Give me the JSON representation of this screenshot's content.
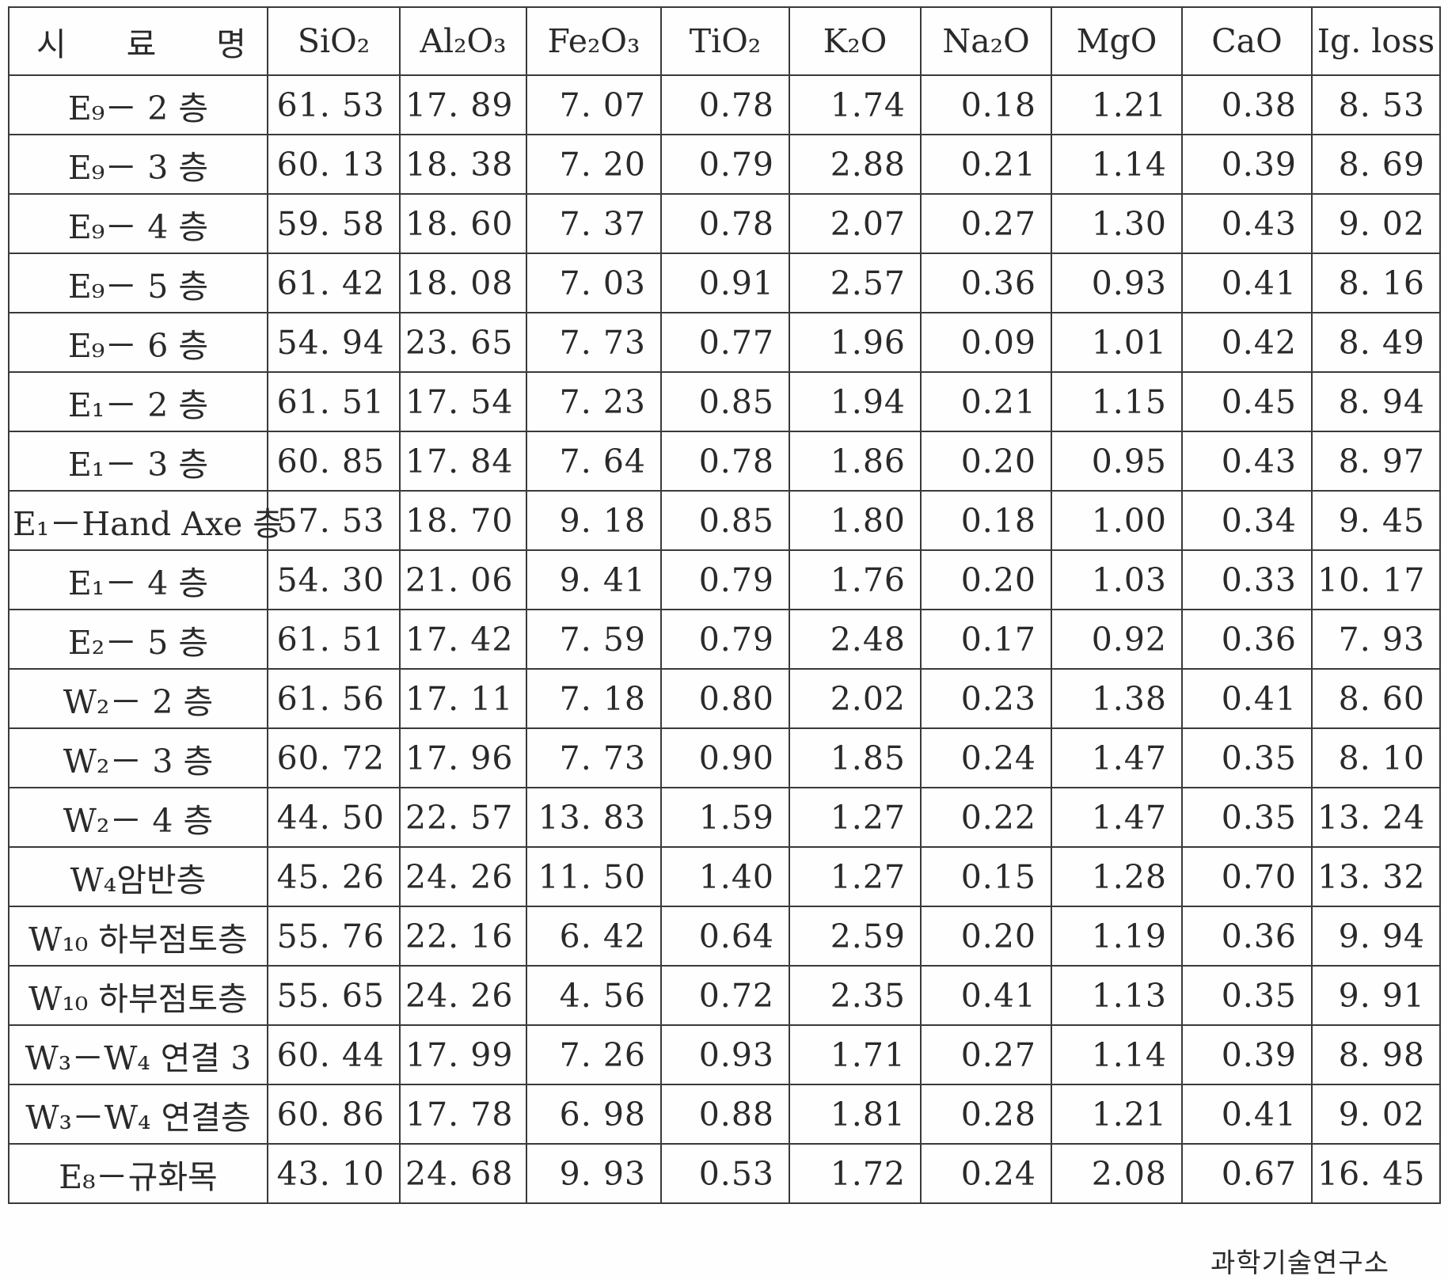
{
  "table": {
    "header": {
      "sample_name_chars": [
        "시",
        "료",
        "명"
      ],
      "columns": [
        "SiO₂",
        "Al₂O₃",
        "Fe₂O₃",
        "TiO₂",
        "K₂O",
        "Na₂O",
        "MgO",
        "CaO",
        "Ig. loss"
      ]
    },
    "rows": [
      {
        "sample": "E₉－ 2 층",
        "values": [
          "61. 53",
          "17. 89",
          "7. 07",
          "0.78",
          "1.74",
          "0.18",
          "1.21",
          "0.38",
          "8. 53"
        ]
      },
      {
        "sample": "E₉－ 3 층",
        "values": [
          "60. 13",
          "18. 38",
          "7. 20",
          "0.79",
          "2.88",
          "0.21",
          "1.14",
          "0.39",
          "8. 69"
        ]
      },
      {
        "sample": "E₉－ 4 층",
        "values": [
          "59. 58",
          "18. 60",
          "7. 37",
          "0.78",
          "2.07",
          "0.27",
          "1.30",
          "0.43",
          "9. 02"
        ]
      },
      {
        "sample": "E₉－ 5 층",
        "values": [
          "61. 42",
          "18. 08",
          "7. 03",
          "0.91",
          "2.57",
          "0.36",
          "0.93",
          "0.41",
          "8. 16"
        ]
      },
      {
        "sample": "E₉－ 6 층",
        "values": [
          "54. 94",
          "23. 65",
          "7. 73",
          "0.77",
          "1.96",
          "0.09",
          "1.01",
          "0.42",
          "8. 49"
        ]
      },
      {
        "sample": "E₁－ 2 층",
        "values": [
          "61. 51",
          "17. 54",
          "7. 23",
          "0.85",
          "1.94",
          "0.21",
          "1.15",
          "0.45",
          "8. 94"
        ]
      },
      {
        "sample": "E₁－ 3 층",
        "values": [
          "60. 85",
          "17. 84",
          "7. 64",
          "0.78",
          "1.86",
          "0.20",
          "0.95",
          "0.43",
          "8. 97"
        ]
      },
      {
        "sample": "E₁－Hand Axe 층",
        "values": [
          "57. 53",
          "18. 70",
          "9. 18",
          "0.85",
          "1.80",
          "0.18",
          "1.00",
          "0.34",
          "9. 45"
        ]
      },
      {
        "sample": "E₁－ 4 층",
        "values": [
          "54. 30",
          "21. 06",
          "9. 41",
          "0.79",
          "1.76",
          "0.20",
          "1.03",
          "0.33",
          "10. 17"
        ]
      },
      {
        "sample": "E₂－ 5 층",
        "values": [
          "61. 51",
          "17. 42",
          "7. 59",
          "0.79",
          "2.48",
          "0.17",
          "0.92",
          "0.36",
          "7. 93"
        ]
      },
      {
        "sample": "W₂－ 2 층",
        "values": [
          "61. 56",
          "17. 11",
          "7. 18",
          "0.80",
          "2.02",
          "0.23",
          "1.38",
          "0.41",
          "8. 60"
        ]
      },
      {
        "sample": "W₂－ 3 층",
        "values": [
          "60. 72",
          "17. 96",
          "7. 73",
          "0.90",
          "1.85",
          "0.24",
          "1.47",
          "0.35",
          "8. 10"
        ]
      },
      {
        "sample": "W₂－ 4 층",
        "values": [
          "44. 50",
          "22. 57",
          "13. 83",
          "1.59",
          "1.27",
          "0.22",
          "1.47",
          "0.35",
          "13. 24"
        ]
      },
      {
        "sample": "W₄암반층",
        "values": [
          "45. 26",
          "24. 26",
          "11. 50",
          "1.40",
          "1.27",
          "0.15",
          "1.28",
          "0.70",
          "13. 32"
        ]
      },
      {
        "sample": "W₁₀ 하부점토층",
        "values": [
          "55. 76",
          "22. 16",
          "6. 42",
          "0.64",
          "2.59",
          "0.20",
          "1.19",
          "0.36",
          "9. 94"
        ]
      },
      {
        "sample": "W₁₀ 하부점토층",
        "values": [
          "55. 65",
          "24. 26",
          "4. 56",
          "0.72",
          "2.35",
          "0.41",
          "1.13",
          "0.35",
          "9. 91"
        ]
      },
      {
        "sample": "W₃－W₄ 연결 3",
        "values": [
          "60. 44",
          "17. 99",
          "7. 26",
          "0.93",
          "1.71",
          "0.27",
          "1.14",
          "0.39",
          "8. 98"
        ]
      },
      {
        "sample": "W₃－W₄ 연결층",
        "values": [
          "60. 86",
          "17. 78",
          "6. 98",
          "0.88",
          "1.81",
          "0.28",
          "1.21",
          "0.41",
          "9. 02"
        ]
      },
      {
        "sample": "E₈－규화목",
        "values": [
          "43. 10",
          "24. 68",
          "9. 93",
          "0.53",
          "1.72",
          "0.24",
          "2.08",
          "0.67",
          "16. 45"
        ]
      }
    ]
  },
  "footnote": "과학기술연구소"
}
